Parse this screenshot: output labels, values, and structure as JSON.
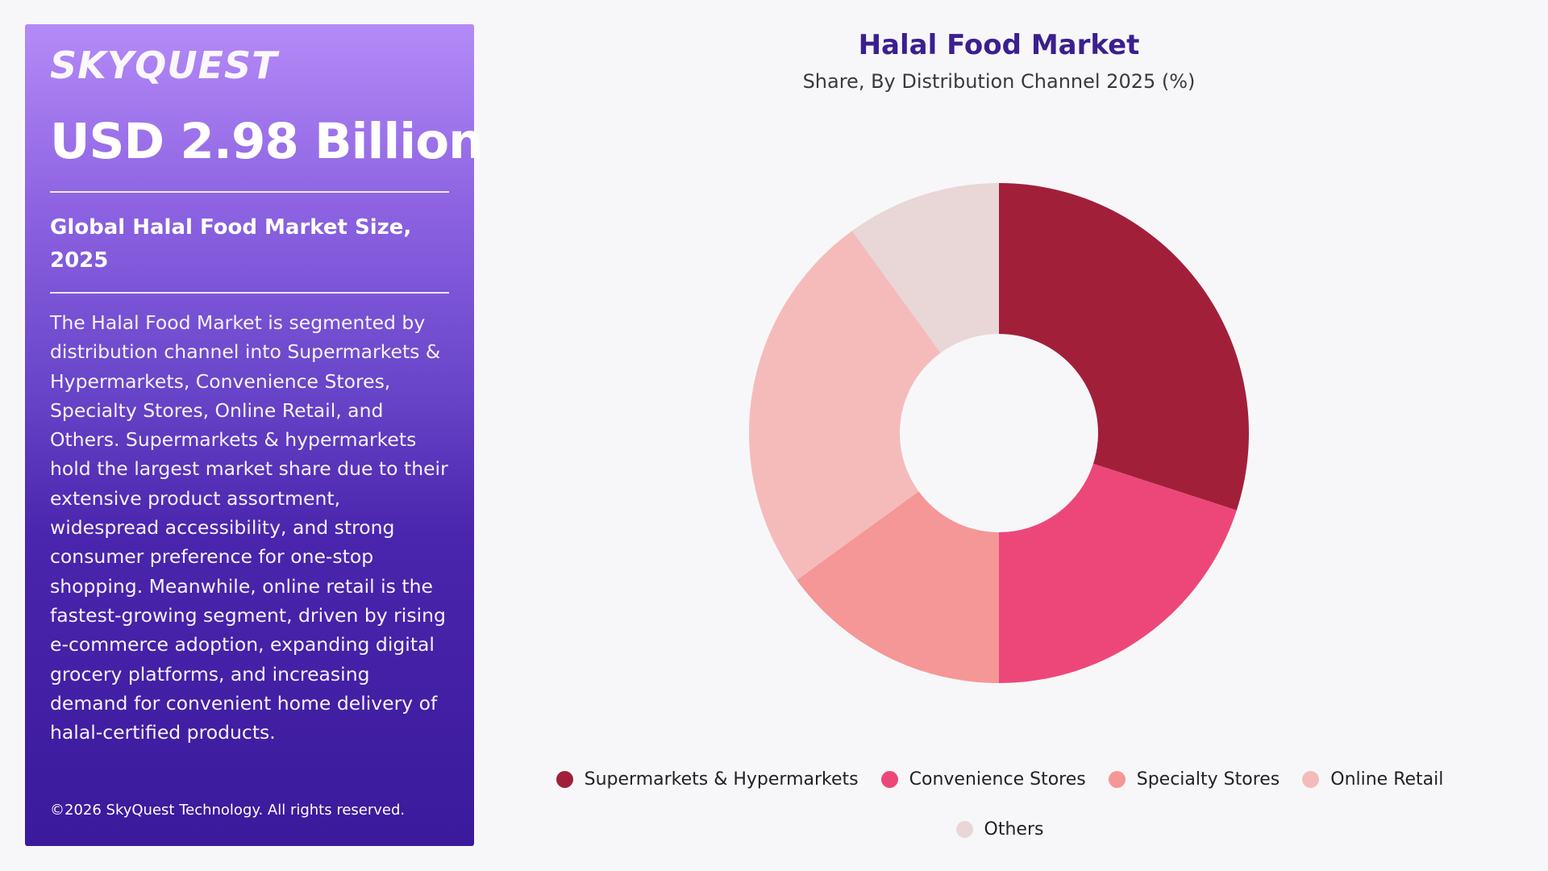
{
  "panel": {
    "logo": "SKYQUEST",
    "headline_value": "USD 2.98 Billion",
    "subhead": "Global Halal Food Market Size, 2025",
    "description": "The Halal Food Market is segmented by distribution channel into Supermarkets & Hypermarkets, Convenience Stores, Specialty Stores, Online Retail, and Others. Supermarkets & hypermarkets hold the largest market share due to their extensive product assortment, widespread accessibility, and strong consumer preference for one-stop shopping. Meanwhile, online retail is the fastest-growing segment, driven by rising e-commerce adoption, expanding digital grocery platforms, and increasing demand for convenient home delivery of halal-certified products.",
    "copyright": "©2026 SkyQuest Technology. All rights reserved."
  },
  "colors": {
    "panel_gradient_top": "#b58af7",
    "panel_gradient_bottom": "#3b1a9c",
    "title": "#3b1f8f"
  },
  "chart_data": {
    "type": "pie",
    "variant": "donut",
    "title": "Halal Food Market",
    "subtitle": "Share, By Distribution Channel 2025 (%)",
    "categories": [
      "Supermarkets & Hypermarkets",
      "Convenience Stores",
      "Specialty Stores",
      "Online Retail",
      "Others"
    ],
    "values": [
      30,
      20,
      15,
      25,
      10
    ],
    "colors": [
      "#a21f3a",
      "#ed477a",
      "#f49796",
      "#f5bbbb",
      "#e9d6d7"
    ],
    "legend_position": "bottom",
    "data_labels": false
  }
}
